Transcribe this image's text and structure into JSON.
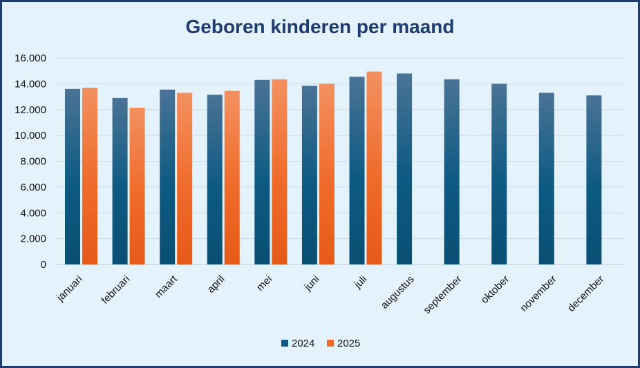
{
  "chart_data": {
    "type": "bar",
    "title": "Geboren kinderen per maand",
    "xlabel": "",
    "ylabel": "",
    "ylim": [
      0,
      16000
    ],
    "y_ticks": [
      "0",
      "2.000",
      "4.000",
      "6.000",
      "8.000",
      "10.000",
      "12.000",
      "14.000",
      "16.000"
    ],
    "categories": [
      "januari",
      "februari",
      "maart",
      "april",
      "mei",
      "juni",
      "juli",
      "augustus",
      "september",
      "oktober",
      "november",
      "december"
    ],
    "series": [
      {
        "name": "2024",
        "color": "#0d5a82",
        "values": [
          13600,
          12900,
          13550,
          13150,
          14300,
          13850,
          14550,
          14800,
          14350,
          14000,
          13300,
          13100
        ]
      },
      {
        "name": "2025",
        "color": "#ef6b2a",
        "values": [
          13700,
          12150,
          13300,
          13450,
          14350,
          14000,
          14950,
          null,
          null,
          null,
          null,
          null
        ]
      }
    ],
    "grid": true,
    "legend_position": "bottom"
  }
}
